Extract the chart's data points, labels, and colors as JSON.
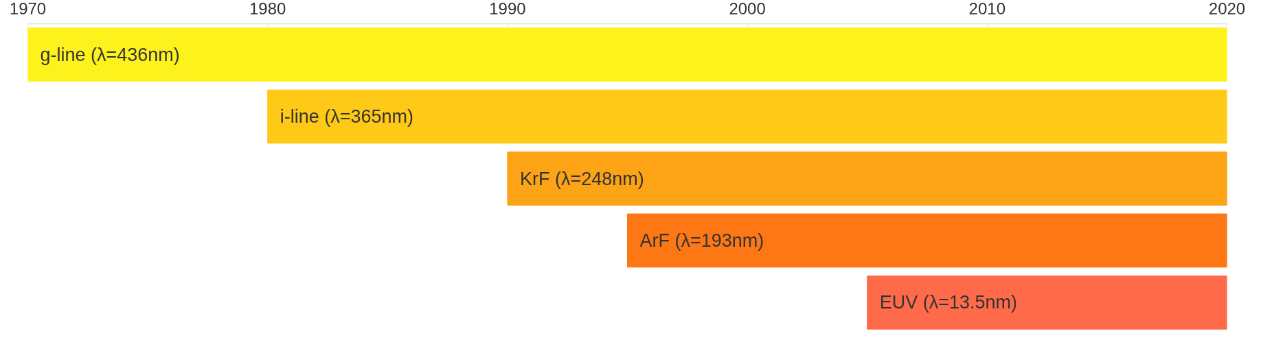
{
  "chart_data": {
    "type": "bar",
    "orientation": "horizontal",
    "categories": [
      "g-line (λ=436nm)",
      "i-line (λ=365nm)",
      "KrF (λ=248nm)",
      "ArF (λ=193nm)",
      "EUV (λ=13.5nm)"
    ],
    "base": [
      1970,
      1980,
      1990,
      1995,
      2005
    ],
    "values": [
      50,
      40,
      30,
      25,
      15
    ],
    "colors": [
      "#fdf21c",
      "#fec917",
      "#fda316",
      "#fd7714",
      "#ff6b4a"
    ],
    "xlim": [
      1970,
      2020
    ],
    "xticks": [
      1970,
      1980,
      1990,
      2000,
      2010,
      2020
    ],
    "grid": false
  }
}
